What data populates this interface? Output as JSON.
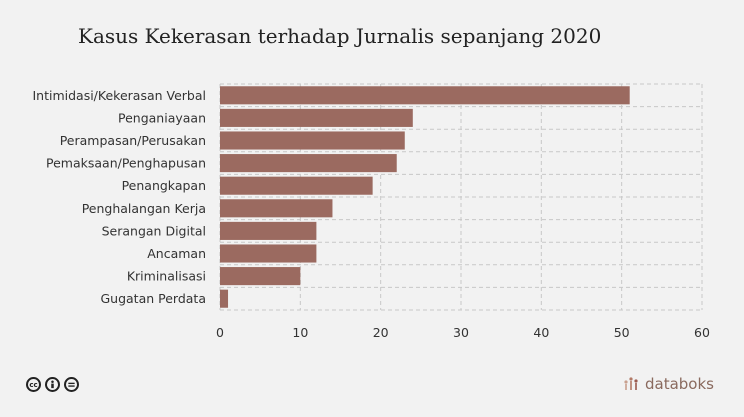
{
  "title": "Kasus Kekerasan terhadap Jurnalis sepanjang 2020",
  "brand": {
    "name": "databoks",
    "color": "#9a5a4e"
  },
  "footer_icons": [
    "creative-commons-icon",
    "attribution-icon",
    "no-derivatives-icon"
  ],
  "chart_data": {
    "type": "bar",
    "orientation": "horizontal",
    "title": "Kasus Kekerasan terhadap Jurnalis sepanjang 2020",
    "categories": [
      "Intimidasi/Kekerasan Verbal",
      "Penganiayaan",
      "Perampasan/Perusakan",
      "Pemaksaan/Penghapusan",
      "Penangkapan",
      "Penghalangan Kerja",
      "Serangan Digital",
      "Ancaman",
      "Kriminalisasi",
      "Gugatan Perdata"
    ],
    "values": [
      51,
      24,
      23,
      22,
      19,
      14,
      12,
      12,
      10,
      1
    ],
    "xlim": [
      0,
      60
    ],
    "xticks": [
      0,
      10,
      20,
      30,
      40,
      50,
      60
    ],
    "grid": true,
    "bar_color": "#9b6a60"
  }
}
